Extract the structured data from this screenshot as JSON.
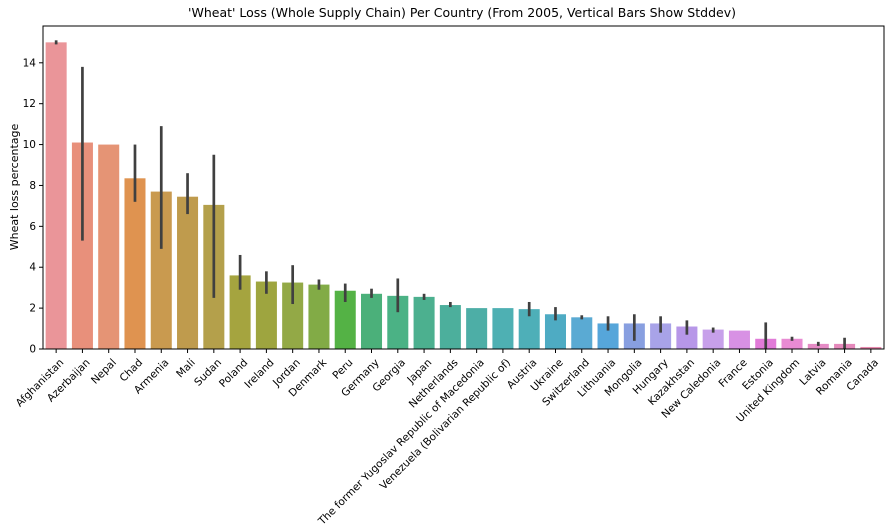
{
  "chart_data": {
    "type": "bar",
    "title": "'Wheat' Loss (Whole Supply Chain) Per Country (From 2005, Vertical Bars Show Stddev)",
    "xlabel": "",
    "ylabel": "Wheat loss percentage",
    "ylim": [
      0,
      15.8
    ],
    "yticks": [
      0,
      2,
      4,
      6,
      8,
      10,
      12,
      14
    ],
    "grid": false,
    "legend": "none",
    "categories": [
      "Afghanistan",
      "Azerbaijan",
      "Nepal",
      "Chad",
      "Armenia",
      "Mali",
      "Sudan",
      "Poland",
      "Ireland",
      "Jordan",
      "Denmark",
      "Peru",
      "Germany",
      "Georgia",
      "Japan",
      "Netherlands",
      "The former Yugoslav Republic of Macedonia",
      "Venezuela (Bolivarian Republic of)",
      "Austria",
      "Ukraine",
      "Switzerland",
      "Lithuania",
      "Mongolia",
      "Hungary",
      "Kazakhstan",
      "New Caledonia",
      "France",
      "Estonia",
      "United Kingdom",
      "Latvia",
      "Romania",
      "Canada"
    ],
    "values": [
      15.0,
      10.1,
      10.0,
      8.35,
      7.7,
      7.45,
      7.05,
      3.6,
      3.3,
      3.25,
      3.15,
      2.85,
      2.7,
      2.6,
      2.55,
      2.15,
      2.0,
      2.0,
      1.95,
      1.7,
      1.55,
      1.25,
      1.25,
      1.25,
      1.1,
      0.95,
      0.9,
      0.5,
      0.5,
      0.25,
      0.25,
      0.1
    ],
    "error_low": [
      14.9,
      5.3,
      null,
      7.2,
      4.9,
      6.6,
      2.5,
      2.9,
      2.7,
      2.2,
      2.9,
      2.3,
      2.5,
      1.8,
      2.4,
      2.05,
      null,
      null,
      1.6,
      1.4,
      1.45,
      0.9,
      0.4,
      0.8,
      0.7,
      0.8,
      null,
      0.0,
      0.4,
      0.15,
      0.0,
      null
    ],
    "error_high": [
      15.1,
      13.8,
      null,
      10.0,
      10.9,
      8.6,
      9.5,
      4.6,
      3.8,
      4.1,
      3.4,
      3.2,
      2.95,
      3.45,
      2.7,
      2.3,
      null,
      null,
      2.3,
      2.05,
      1.65,
      1.6,
      1.7,
      1.6,
      1.4,
      1.05,
      null,
      1.3,
      0.6,
      0.35,
      0.55,
      null
    ],
    "colors": [
      "#ea9599",
      "#e8907b",
      "#e59475",
      "#df9350",
      "#c99a4f",
      "#bf9b4d",
      "#b4a04b",
      "#a5a43f",
      "#9ea53f",
      "#93a946",
      "#82ab46",
      "#54b245",
      "#4bb07a",
      "#4bb285",
      "#4cb08f",
      "#4caf9c",
      "#4daea6",
      "#4eb0b3",
      "#4eafb8",
      "#4eabc3",
      "#5aaad3",
      "#56a6da",
      "#889fe0",
      "#a8a3e8",
      "#b797e8",
      "#c7a0ea",
      "#d891e4",
      "#e17bd8",
      "#e88bd3",
      "#e58bc5",
      "#e589bb",
      "#e78aae"
    ],
    "error_bar_color": "#404040"
  }
}
